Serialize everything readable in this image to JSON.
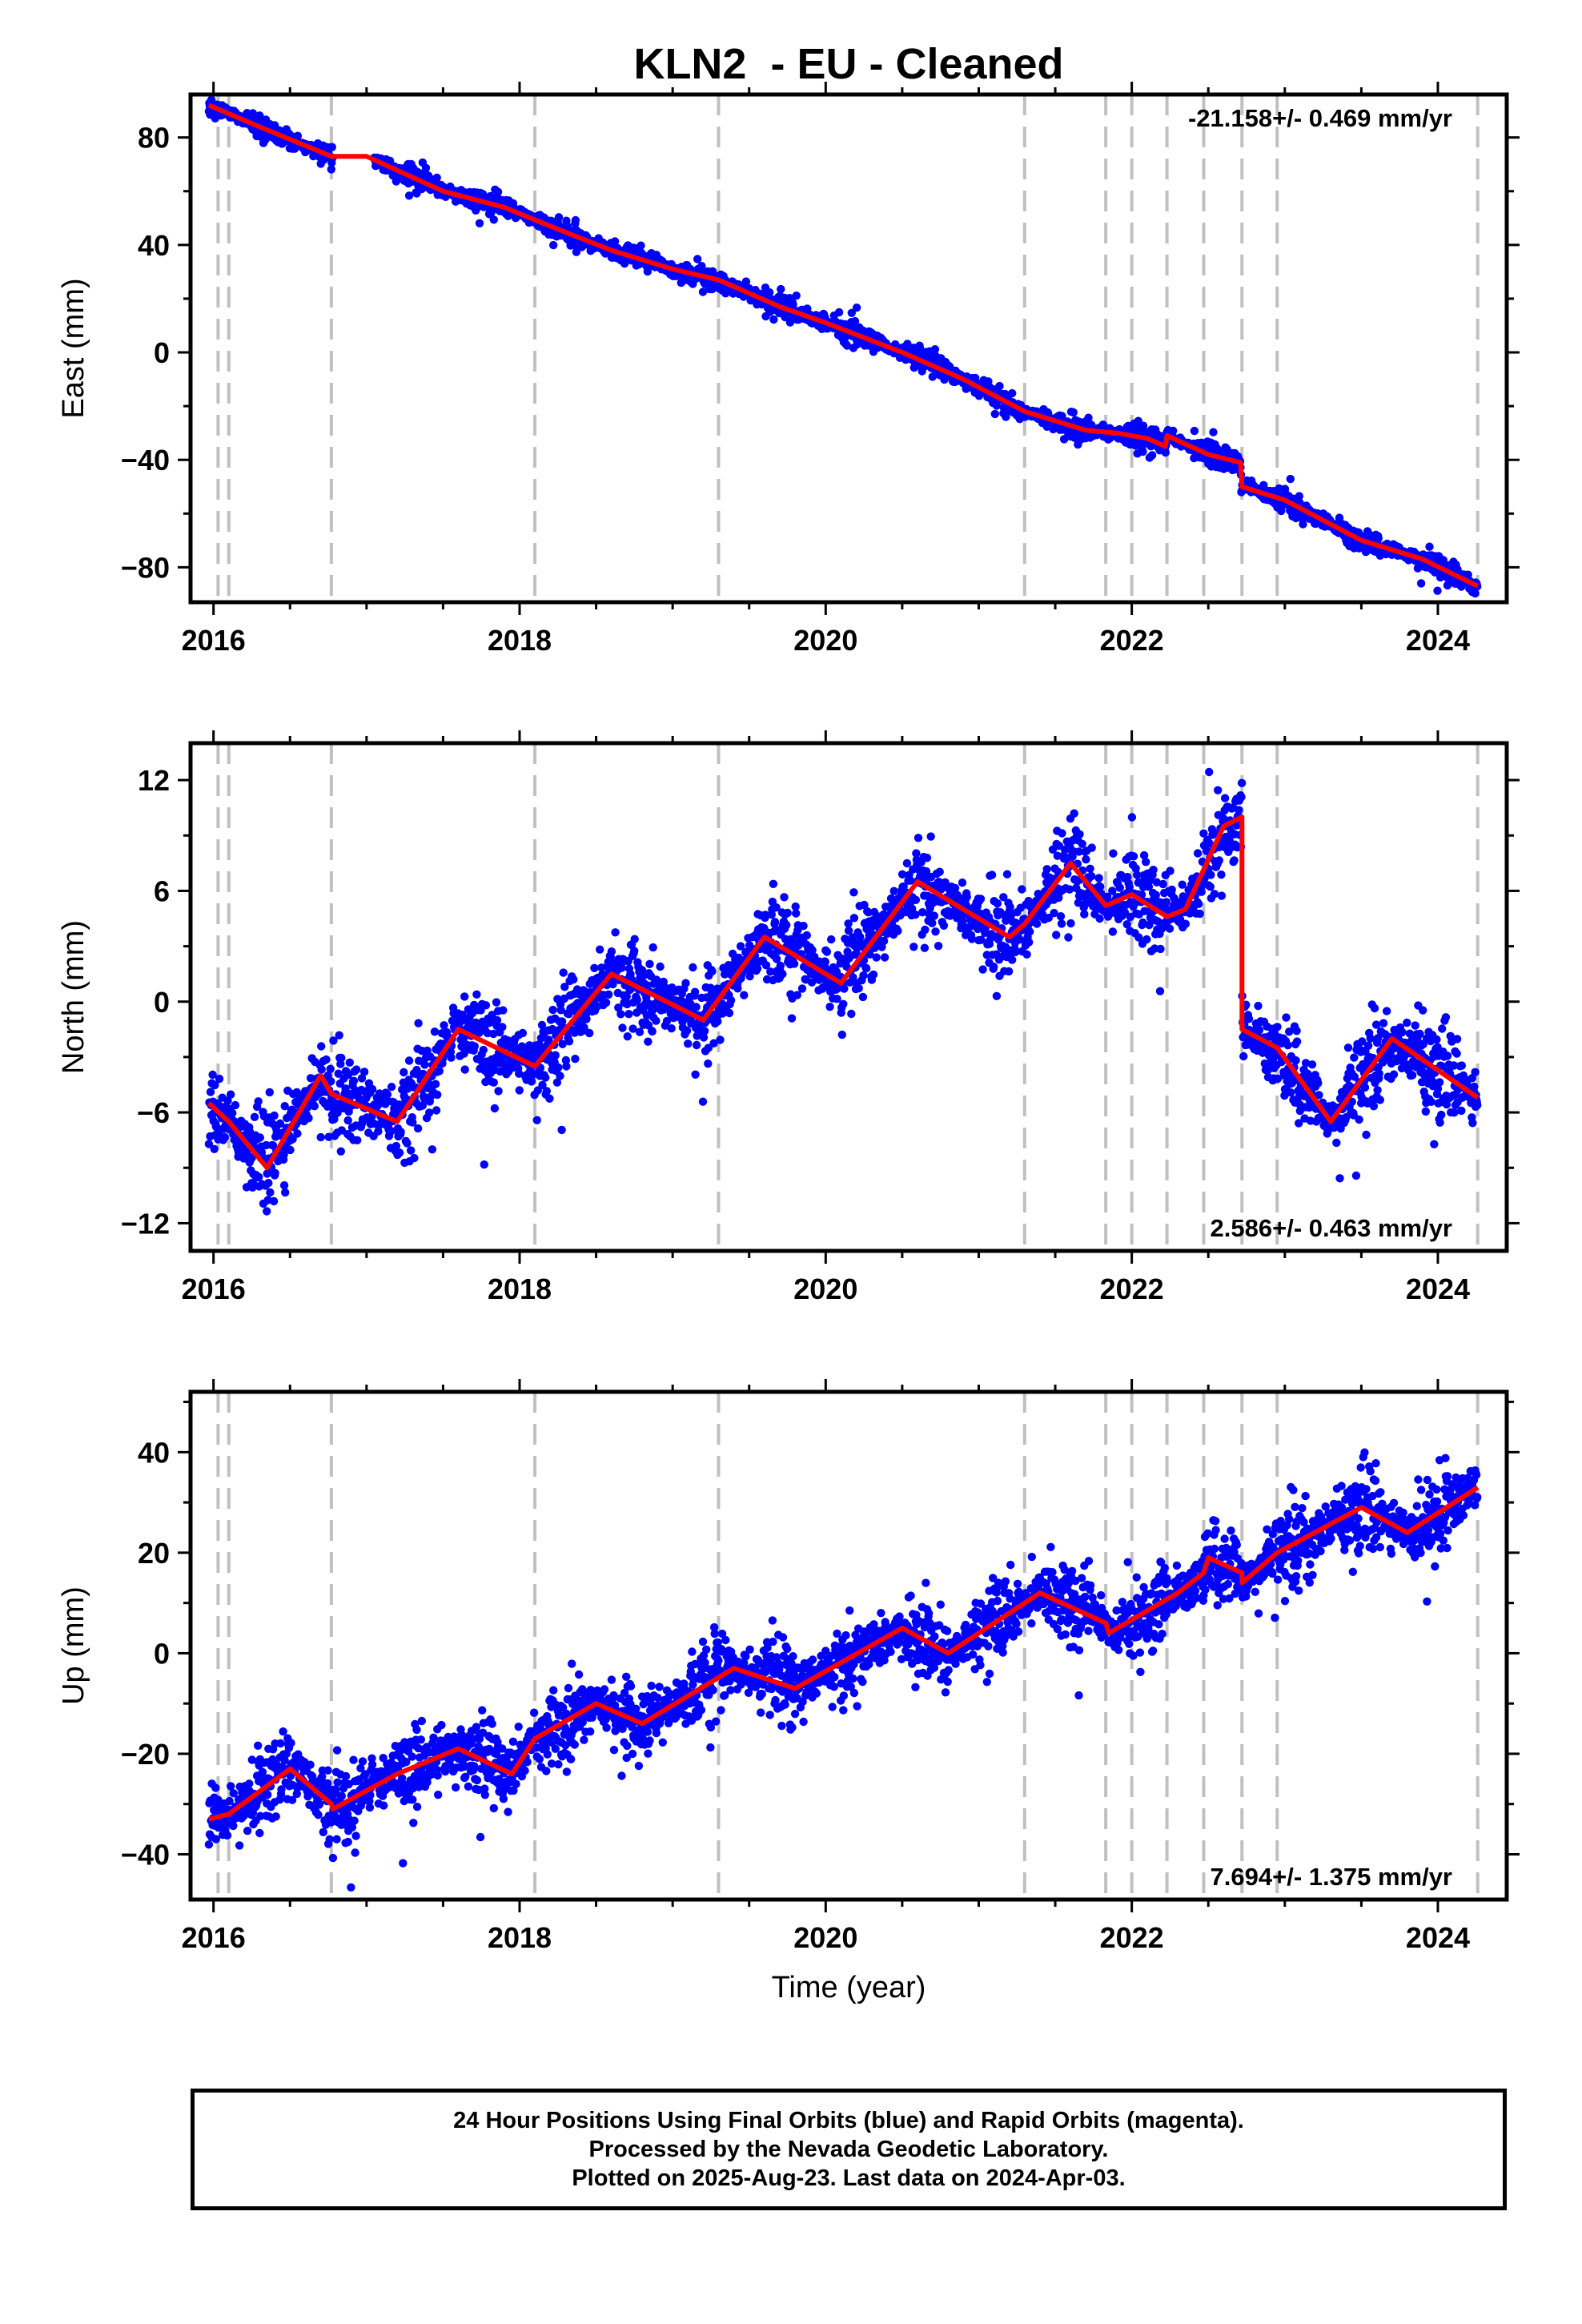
{
  "colors": {
    "final_orbits": "#0000ff",
    "model_fit": "#ff0000",
    "event_lines": "#c0c0c0",
    "frame": "#000000"
  },
  "chart_data": {
    "type": "scatter",
    "title": "KLN2  - EU - Cleaned",
    "xlabel": "Time (year)",
    "xlim": [
      2015.85,
      2024.45
    ],
    "xticks": [
      2016,
      2018,
      2020,
      2022,
      2024
    ],
    "data_span": [
      2015.97,
      2024.26
    ],
    "event_lines": [
      2016.03,
      2016.1,
      2016.77,
      2018.1,
      2019.3,
      2021.3,
      2021.83,
      2022.0,
      2022.23,
      2022.47,
      2022.72,
      2022.95,
      2024.26
    ],
    "panels": [
      {
        "name": "east",
        "ylabel": "East (mm)",
        "ylim": [
          -93,
          96
        ],
        "yticks": [
          -80,
          -40,
          0,
          40,
          80
        ],
        "rate_text": "-21.158+/- 0.469 mm/yr",
        "rate_position": "top-right",
        "noise": 2.5,
        "fit": {
          "x": [
            2015.97,
            2016.3,
            2016.77,
            2017.0,
            2017.5,
            2017.9,
            2018.2,
            2018.6,
            2019.0,
            2019.3,
            2019.7,
            2020.0,
            2020.5,
            2020.9,
            2021.3,
            2021.7,
            2021.9,
            2022.1,
            2022.22,
            2022.23,
            2022.5,
            2022.71,
            2022.72,
            2023.0,
            2023.5,
            2023.9,
            2024.26
          ],
          "y": [
            92,
            84,
            73,
            73,
            60,
            54,
            47,
            38,
            31,
            27,
            17,
            11,
            0,
            -10,
            -22,
            -29,
            -30,
            -32,
            -35,
            -31,
            -38,
            -41,
            -50,
            -55,
            -70,
            -77,
            -87
          ]
        }
      },
      {
        "name": "north",
        "ylabel": "North (mm)",
        "ylim": [
          -13.5,
          14
        ],
        "yticks": [
          -12,
          -6,
          0,
          6,
          12
        ],
        "rate_text": "2.586+/- 0.463 mm/yr",
        "rate_position": "bottom-right",
        "noise": 1.4,
        "fit": {
          "x": [
            2015.97,
            2016.1,
            2016.35,
            2016.7,
            2016.77,
            2017.2,
            2017.6,
            2018.1,
            2018.6,
            2019.2,
            2019.6,
            2020.1,
            2020.6,
            2021.2,
            2021.3,
            2021.6,
            2021.83,
            2022.0,
            2022.23,
            2022.35,
            2022.6,
            2022.72,
            2022.72,
            2022.95,
            2023.3,
            2023.7,
            2024.26
          ],
          "y": [
            -5.5,
            -6.5,
            -9.0,
            -4.0,
            -5.0,
            -6.5,
            -1.5,
            -3.5,
            1.5,
            -1.0,
            3.5,
            1.0,
            6.5,
            3.5,
            4.2,
            7.5,
            5.2,
            5.8,
            4.6,
            5.0,
            9.5,
            10.0,
            -1.5,
            -2.5,
            -6.5,
            -2.0,
            -5.2
          ]
        }
      },
      {
        "name": "up",
        "ylabel": "Up (mm)",
        "ylim": [
          -49,
          52
        ],
        "yticks": [
          -40,
          -20,
          0,
          20,
          40
        ],
        "rate_text": "7.694+/- 1.375 mm/yr",
        "rate_position": "bottom-right",
        "noise": 4.5,
        "fit": {
          "x": [
            2015.97,
            2016.1,
            2016.5,
            2016.77,
            2016.78,
            2017.2,
            2017.6,
            2017.95,
            2018.1,
            2018.5,
            2018.8,
            2019.4,
            2019.8,
            2020.5,
            2020.8,
            2021.4,
            2021.83,
            2021.85,
            2022.3,
            2022.47,
            2022.5,
            2022.72,
            2022.72,
            2022.95,
            2023.5,
            2023.8,
            2024.26
          ],
          "y": [
            -33,
            -32,
            -23,
            -30,
            -31,
            -24,
            -19,
            -24,
            -17,
            -10,
            -14,
            -3,
            -7,
            5,
            0,
            12,
            6,
            4,
            12,
            16,
            19,
            16,
            14,
            20,
            29,
            24,
            33
          ]
        }
      }
    ]
  },
  "footer": {
    "line1": "24 Hour Positions Using Final Orbits (blue) and Rapid Orbits (magenta).",
    "line2": "Processed by the Nevada Geodetic Laboratory.",
    "line3": "Plotted on 2025-Aug-23. Last data on 2024-Apr-03."
  }
}
